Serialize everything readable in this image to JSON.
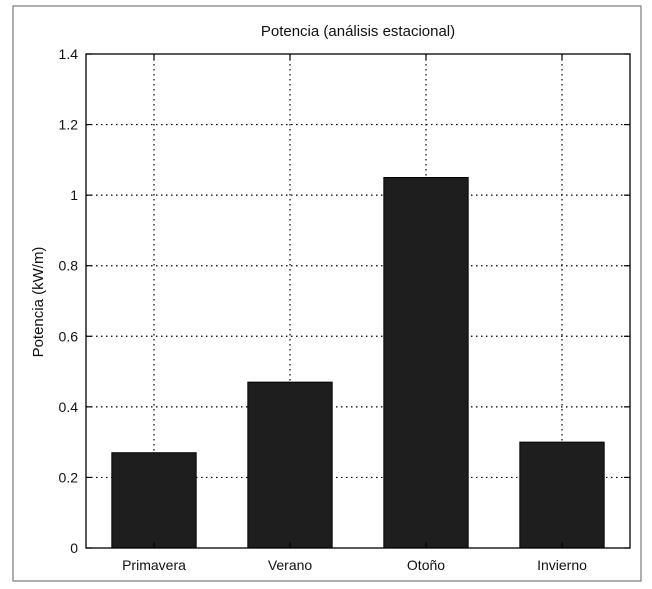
{
  "chart_data": {
    "type": "bar",
    "title": "Potencia (análisis estacional)",
    "xlabel": "",
    "ylabel": "Potencia (kW/m)",
    "categories": [
      "Primavera",
      "Verano",
      "Otoño",
      "Invierno"
    ],
    "values": [
      0.27,
      0.47,
      1.05,
      0.3
    ],
    "ylim": [
      0,
      1.4
    ],
    "yticks": [
      "0",
      "0.2",
      "0.4",
      "0.6",
      "0.8",
      "1",
      "1.2",
      "1.4"
    ],
    "grid": true,
    "bar_color": "#1e1e1e",
    "grid_color": "#000000"
  }
}
